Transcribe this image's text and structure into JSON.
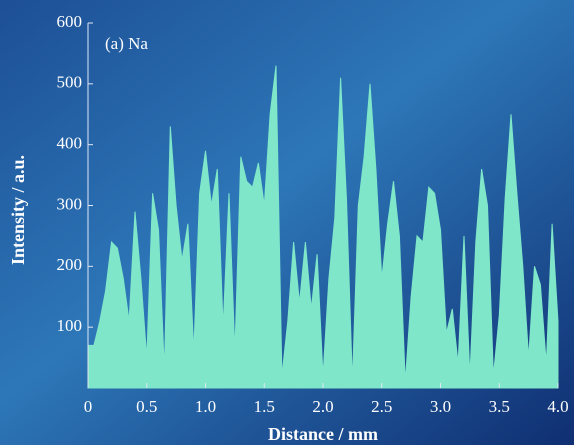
{
  "chart_data": {
    "type": "area",
    "annotation": "(a) Na",
    "xlabel": "Distance / mm",
    "ylabel": "Intensity / a.u.",
    "color": "#7fe6c9",
    "xlim": [
      0,
      4
    ],
    "ylim": [
      0,
      600
    ],
    "xticks": [
      0,
      0.5,
      {
        "value": 1,
        "label": "1.0"
      },
      1.5,
      {
        "value": 2,
        "label": "2.0"
      },
      2.5,
      {
        "value": 3,
        "label": "3.0"
      },
      3.5,
      {
        "value": 4,
        "label": "4.0"
      }
    ],
    "yticks": [
      100,
      200,
      300,
      400,
      500,
      600
    ],
    "x": [
      0,
      0.05,
      0.1,
      0.15,
      0.2,
      0.25,
      0.3,
      0.35,
      0.4,
      0.45,
      0.5,
      0.55,
      0.6,
      0.65,
      0.7,
      0.75,
      0.8,
      0.85,
      0.9,
      0.95,
      1,
      1.05,
      1.1,
      1.15,
      1.2,
      1.25,
      1.3,
      1.35,
      1.4,
      1.45,
      1.5,
      1.55,
      1.6,
      1.65,
      1.7,
      1.75,
      1.8,
      1.85,
      1.9,
      1.95,
      2,
      2.05,
      2.1,
      2.15,
      2.2,
      2.25,
      2.3,
      2.35,
      2.4,
      2.45,
      2.5,
      2.55,
      2.6,
      2.65,
      2.7,
      2.75,
      2.8,
      2.85,
      2.9,
      2.95,
      3,
      3.05,
      3.1,
      3.15,
      3.2,
      3.25,
      3.3,
      3.35,
      3.4,
      3.45,
      3.5,
      3.55,
      3.6,
      3.65,
      3.7,
      3.75,
      3.8,
      3.85,
      3.9,
      3.95,
      4
    ],
    "y": [
      70,
      70,
      110,
      160,
      240,
      230,
      180,
      110,
      290,
      180,
      50,
      320,
      260,
      30,
      430,
      300,
      210,
      270,
      60,
      320,
      390,
      300,
      360,
      100,
      320,
      60,
      380,
      340,
      330,
      370,
      300,
      450,
      530,
      20,
      110,
      240,
      140,
      240,
      130,
      220,
      20,
      180,
      280,
      510,
      310,
      10,
      300,
      380,
      500,
      360,
      180,
      270,
      340,
      250,
      10,
      150,
      250,
      240,
      330,
      320,
      260,
      90,
      130,
      40,
      250,
      20,
      240,
      360,
      300,
      20,
      120,
      310,
      450,
      320,
      200,
      50,
      200,
      170,
      40,
      270,
      110
    ]
  }
}
